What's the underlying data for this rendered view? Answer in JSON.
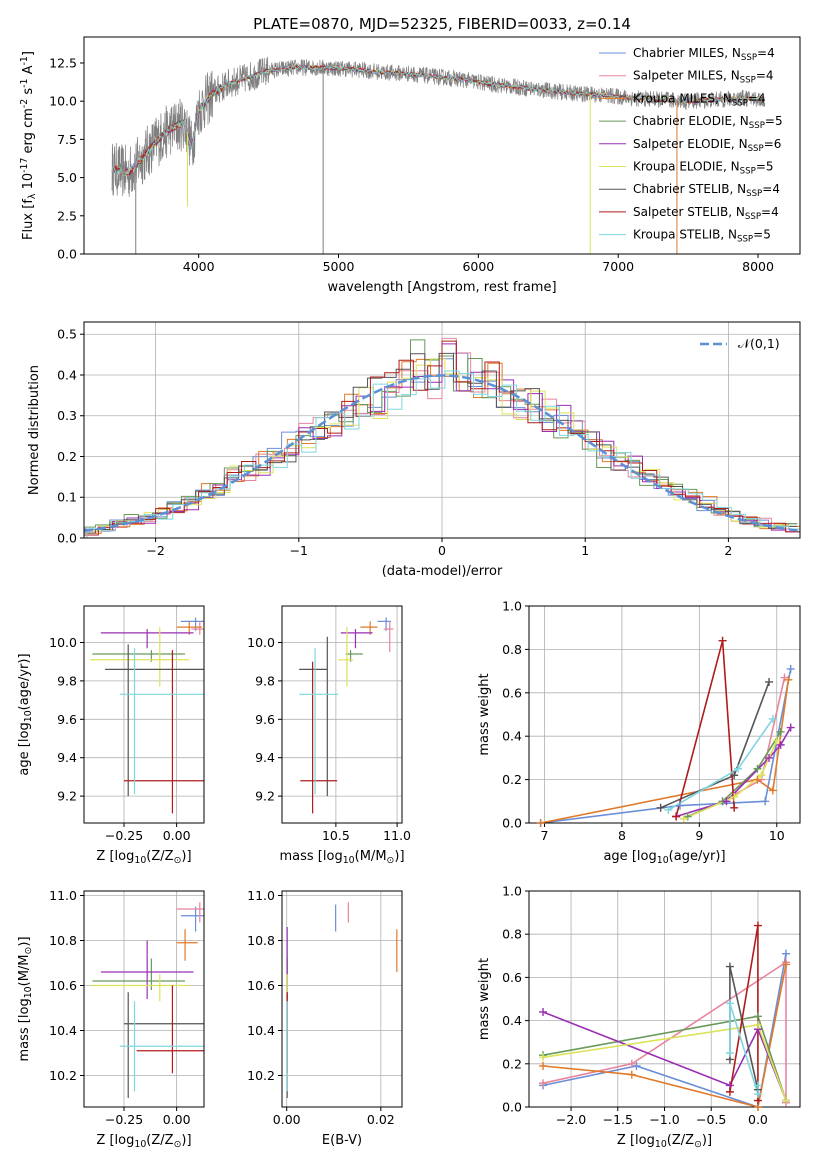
{
  "figure_title": "PLATE=0870, MJD=52325, FIBERID=0033, z=0.14",
  "models": [
    {
      "name": "Chabrier MILES, N$_{SSP}$=4",
      "color": "#6a8fd8"
    },
    {
      "name": "Salpeter MILES, N$_{SSP}$=4",
      "color": "#e8859c"
    },
    {
      "name": "Kroupa MILES, N$_{SSP}$=4",
      "color": "#e07a2a"
    },
    {
      "name": "Chabrier ELODIE, N$_{SSP}$=5",
      "color": "#6a9a5a"
    },
    {
      "name": "Salpeter ELODIE, N$_{SSP}$=6",
      "color": "#9a2fb5"
    },
    {
      "name": "Kroupa ELODIE, N$_{SSP}$=5",
      "color": "#dce35a"
    },
    {
      "name": "Chabrier STELIB, N$_{SSP}$=4",
      "color": "#555555"
    },
    {
      "name": "Salpeter STELIB, N$_{SSP}$=4",
      "color": "#b01c1c"
    },
    {
      "name": "Kroupa STELIB, N$_{SSP}$=5",
      "color": "#7fd6e0"
    }
  ],
  "chart_data": [
    {
      "id": "spectrum",
      "type": "line",
      "xlabel": "wavelength [Angstrom, rest frame]",
      "ylabel": "Flux [f$_\\lambda$ 10$^{-17}$ erg cm$^{-2}$ s$^{-1}$ A$^{-1}$]",
      "xlim": [
        3180,
        8300
      ],
      "ylim": [
        0,
        14.2
      ],
      "xticks": [
        4000,
        5000,
        6000,
        7000,
        8000
      ],
      "yticks": [
        0.0,
        2.5,
        5.0,
        7.5,
        10.0,
        12.5
      ],
      "grid": false,
      "legend": "right",
      "data_color": "#808080",
      "continuum": {
        "x": [
          3380,
          3500,
          3600,
          3700,
          3800,
          3900,
          3950,
          4000,
          4100,
          4200,
          4300,
          4400,
          4500,
          4700,
          4900,
          5100,
          5300,
          5500,
          5700,
          5900,
          6100,
          6300,
          6500,
          6700,
          6900,
          7100,
          7300,
          7500,
          7700,
          7900,
          8050
        ],
        "y": [
          5.6,
          5.3,
          6.3,
          7.4,
          8.2,
          8.6,
          7.0,
          9.4,
          10.5,
          11.1,
          11.4,
          11.7,
          12.0,
          12.2,
          12.2,
          12.1,
          11.9,
          11.8,
          11.6,
          11.4,
          11.1,
          10.9,
          10.7,
          10.5,
          10.4,
          10.2,
          10.1,
          10.0,
          10.1,
          10.2,
          10.1
        ]
      },
      "spikes": [
        {
          "x": 3550,
          "y": 0.0,
          "color": "#808080"
        },
        {
          "x": 3920,
          "y": 3.1,
          "color": "#dce35a"
        },
        {
          "x": 4890,
          "y": 0.0,
          "color": "#808080"
        },
        {
          "x": 6800,
          "y": 0.0,
          "color": "#dce35a"
        },
        {
          "x": 7420,
          "y": 0.0,
          "color": "#e07a2a"
        }
      ]
    },
    {
      "id": "residuals",
      "type": "step",
      "xlabel": "(data-model)/error",
      "ylabel": "Normed distribution",
      "xlim": [
        -2.5,
        2.5
      ],
      "ylim": [
        0,
        0.53
      ],
      "xticks": [
        -2,
        -1,
        0,
        1,
        2
      ],
      "yticks": [
        0.0,
        0.1,
        0.2,
        0.3,
        0.4,
        0.5
      ],
      "grid": true,
      "legend": "top-right",
      "normal_label": "$\\mathcal{N}(0,1)$",
      "normal_color": "#5b8fd6",
      "bins": [
        -2.5,
        -2.4,
        -2.3,
        -2.2,
        -2.1,
        -2.0,
        -1.9,
        -1.8,
        -1.7,
        -1.6,
        -1.5,
        -1.4,
        -1.3,
        -1.2,
        -1.1,
        -1.0,
        -0.9,
        -0.8,
        -0.7,
        -0.6,
        -0.5,
        -0.4,
        -0.3,
        -0.2,
        -0.1,
        0.0,
        0.1,
        0.2,
        0.3,
        0.4,
        0.5,
        0.6,
        0.7,
        0.8,
        0.9,
        1.0,
        1.1,
        1.2,
        1.3,
        1.4,
        1.5,
        1.6,
        1.7,
        1.8,
        1.9,
        2.0,
        2.1,
        2.2,
        2.3,
        2.4,
        2.5
      ],
      "hist_base": [
        0.02,
        0.025,
        0.035,
        0.045,
        0.05,
        0.06,
        0.075,
        0.09,
        0.11,
        0.125,
        0.15,
        0.165,
        0.18,
        0.2,
        0.22,
        0.245,
        0.27,
        0.29,
        0.31,
        0.33,
        0.345,
        0.36,
        0.38,
        0.42,
        0.4,
        0.44,
        0.41,
        0.39,
        0.38,
        0.36,
        0.34,
        0.32,
        0.3,
        0.28,
        0.26,
        0.235,
        0.21,
        0.19,
        0.17,
        0.15,
        0.13,
        0.115,
        0.1,
        0.085,
        0.07,
        0.055,
        0.045,
        0.035,
        0.03,
        0.025
      ]
    },
    {
      "id": "age_vs_Z",
      "type": "scatter",
      "xlabel": "Z [log$_{10}$(Z/Z$_\\odot$)]",
      "ylabel": "age  [log$_{10}$(age/yr)]",
      "xlim": [
        -0.44,
        0.13
      ],
      "ylim": [
        9.06,
        10.19
      ],
      "xticks": [
        -0.25,
        0.0
      ],
      "yticks": [
        9.2,
        9.4,
        9.6,
        9.8,
        10.0
      ],
      "grid": true,
      "points": [
        {
          "m": 0,
          "x": 0.09,
          "y": 10.11,
          "ex": [
            0.07,
            0.04
          ],
          "ey": [
            0.05,
            0.02
          ]
        },
        {
          "m": 1,
          "x": 0.11,
          "y": 10.07,
          "ex": [
            0.04,
            0.02
          ],
          "ey": [
            0.03,
            0.04
          ]
        },
        {
          "m": 2,
          "x": 0.06,
          "y": 10.08,
          "ex": [
            0.06,
            0.06
          ],
          "ey": [
            0.04,
            0.03
          ]
        },
        {
          "m": 3,
          "x": -0.12,
          "y": 9.94,
          "ex": [
            0.28,
            0.16
          ],
          "ey": [
            0.04,
            0.02
          ]
        },
        {
          "m": 4,
          "x": -0.14,
          "y": 10.05,
          "ex": [
            0.22,
            0.22
          ],
          "ey": [
            0.08,
            0.02
          ]
        },
        {
          "m": 5,
          "x": -0.08,
          "y": 9.91,
          "ex": [
            0.33,
            0.14
          ],
          "ey": [
            0.14,
            0.17
          ]
        },
        {
          "m": 6,
          "x": -0.23,
          "y": 9.86,
          "ex": [
            0.11,
            0.38
          ],
          "ey": [
            0.66,
            0.13
          ]
        },
        {
          "m": 7,
          "x": -0.02,
          "y": 9.28,
          "ex": [
            0.23,
            0.16
          ],
          "ey": [
            0.17,
            0.68
          ]
        },
        {
          "m": 8,
          "x": -0.2,
          "y": 9.73,
          "ex": [
            0.07,
            0.34
          ],
          "ey": [
            0.52,
            0.24
          ]
        }
      ]
    },
    {
      "id": "age_vs_mass",
      "type": "scatter",
      "xlabel": "mass [log$_{10}$(M/M$_\\odot$)]",
      "ylabel": "",
      "xlim": [
        10.06,
        11.04
      ],
      "ylim": [
        9.06,
        10.19
      ],
      "xticks": [
        10.5,
        11.0
      ],
      "yticks": [
        9.2,
        9.4,
        9.6,
        9.8,
        10.0
      ],
      "grid": true,
      "points": [
        {
          "m": 0,
          "x": 10.91,
          "y": 10.11,
          "ex": [
            0.07,
            0.04
          ],
          "ey": [
            0.05,
            0.02
          ]
        },
        {
          "m": 1,
          "x": 10.94,
          "y": 10.07,
          "ex": [
            0.05,
            0.03
          ],
          "ey": [
            0.12,
            0.04
          ]
        },
        {
          "m": 2,
          "x": 10.78,
          "y": 10.08,
          "ex": [
            0.08,
            0.06
          ],
          "ey": [
            0.04,
            0.03
          ]
        },
        {
          "m": 3,
          "x": 10.62,
          "y": 9.94,
          "ex": [
            0.04,
            0.1
          ],
          "ey": [
            0.04,
            0.02
          ]
        },
        {
          "m": 4,
          "x": 10.66,
          "y": 10.05,
          "ex": [
            0.12,
            0.14
          ],
          "ey": [
            0.08,
            0.02
          ]
        },
        {
          "m": 5,
          "x": 10.59,
          "y": 9.91,
          "ex": [
            0.07,
            0.05
          ],
          "ey": [
            0.14,
            0.17
          ]
        },
        {
          "m": 6,
          "x": 10.43,
          "y": 9.86,
          "ex": [
            0.23,
            0.0
          ],
          "ey": [
            0.66,
            0.17
          ]
        },
        {
          "m": 7,
          "x": 10.31,
          "y": 9.28,
          "ex": [
            0.1,
            0.2
          ],
          "ey": [
            0.17,
            0.62
          ]
        },
        {
          "m": 8,
          "x": 10.33,
          "y": 9.73,
          "ex": [
            0.13,
            0.19
          ],
          "ey": [
            0.52,
            0.24
          ]
        }
      ]
    },
    {
      "id": "weight_vs_age",
      "type": "line",
      "xlabel": "age  [log$_{10}$(age/yr)]",
      "ylabel": "mass weight",
      "xlim": [
        6.8,
        10.3
      ],
      "ylim": [
        0,
        1.0
      ],
      "xticks": [
        7,
        8,
        9,
        10
      ],
      "yticks": [
        0.0,
        0.2,
        0.4,
        0.6,
        0.8,
        1.0
      ],
      "grid": true,
      "series": [
        {
          "m": 0,
          "x": [
            6.95,
            8.75,
            9.85,
            10.18
          ],
          "y": [
            0.0,
            0.08,
            0.1,
            0.71
          ]
        },
        {
          "m": 1,
          "x": [
            8.8,
            9.3,
            9.8,
            10.1
          ],
          "y": [
            0.02,
            0.1,
            0.2,
            0.67
          ]
        },
        {
          "m": 2,
          "x": [
            6.95,
            9.75,
            9.95,
            10.15
          ],
          "y": [
            0.0,
            0.2,
            0.15,
            0.66
          ]
        },
        {
          "m": 3,
          "x": [
            8.85,
            9.3,
            9.75,
            10.05
          ],
          "y": [
            0.03,
            0.1,
            0.25,
            0.42
          ]
        },
        {
          "m": 4,
          "x": [
            8.7,
            9.35,
            9.9,
            10.05,
            10.18
          ],
          "y": [
            0.03,
            0.1,
            0.3,
            0.36,
            0.44
          ]
        },
        {
          "m": 5,
          "x": [
            8.8,
            9.45,
            9.8,
            10.0
          ],
          "y": [
            0.02,
            0.12,
            0.22,
            0.38
          ]
        },
        {
          "m": 6,
          "x": [
            8.5,
            9.45,
            9.9
          ],
          "y": [
            0.07,
            0.22,
            0.65
          ]
        },
        {
          "m": 7,
          "x": [
            8.7,
            9.3,
            9.45
          ],
          "y": [
            0.03,
            0.84,
            0.07
          ]
        },
        {
          "m": 8,
          "x": [
            8.6,
            9.5,
            9.95
          ],
          "y": [
            0.06,
            0.25,
            0.48
          ]
        }
      ]
    },
    {
      "id": "mass_vs_Z",
      "type": "scatter",
      "xlabel": "Z [log$_{10}$(Z/Z$_\\odot$)]",
      "ylabel": "mass [log$_{10}$(M/M$_\\odot$)]",
      "xlim": [
        -0.44,
        0.13
      ],
      "ylim": [
        10.06,
        11.02
      ],
      "xticks": [
        -0.25,
        0.0
      ],
      "yticks": [
        10.2,
        10.4,
        10.6,
        10.8,
        11.0
      ],
      "grid": true,
      "points": [
        {
          "m": 0,
          "x": 0.09,
          "y": 10.91,
          "ex": [
            0.07,
            0.04
          ],
          "ey": [
            0.07,
            0.04
          ]
        },
        {
          "m": 1,
          "x": 0.11,
          "y": 10.94,
          "ex": [
            0.11,
            0.02
          ],
          "ey": [
            0.06,
            0.03
          ]
        },
        {
          "m": 2,
          "x": 0.04,
          "y": 10.79,
          "ex": [
            0.04,
            0.06
          ],
          "ey": [
            0.08,
            0.06
          ]
        },
        {
          "m": 3,
          "x": -0.12,
          "y": 10.62,
          "ex": [
            0.28,
            0.16
          ],
          "ey": [
            0.04,
            0.1
          ]
        },
        {
          "m": 4,
          "x": -0.14,
          "y": 10.66,
          "ex": [
            0.22,
            0.22
          ],
          "ey": [
            0.12,
            0.14
          ]
        },
        {
          "m": 5,
          "x": -0.08,
          "y": 10.6,
          "ex": [
            0.33,
            0.14
          ],
          "ey": [
            0.07,
            0.05
          ]
        },
        {
          "m": 6,
          "x": -0.23,
          "y": 10.43,
          "ex": [
            0.02,
            0.36
          ],
          "ey": [
            0.33,
            0.14
          ]
        },
        {
          "m": 7,
          "x": -0.02,
          "y": 10.31,
          "ex": [
            0.17,
            0.17
          ],
          "ey": [
            0.1,
            0.29
          ]
        },
        {
          "m": 8,
          "x": -0.2,
          "y": 10.33,
          "ex": [
            0.07,
            0.34
          ],
          "ey": [
            0.2,
            0.2
          ]
        }
      ]
    },
    {
      "id": "mass_vs_ebv",
      "type": "scatter",
      "xlabel": "E(B-V)",
      "ylabel": "",
      "xlim": [
        -0.001,
        0.0245
      ],
      "ylim": [
        10.06,
        11.02
      ],
      "xticks": [
        0.0,
        0.02
      ],
      "yticks": [
        10.2,
        10.4,
        10.6,
        10.8,
        11.0
      ],
      "grid": true,
      "points": [
        {
          "m": 0,
          "x": 0.0104,
          "y": 10.91,
          "ex": [
            0,
            0
          ],
          "ey": [
            0.07,
            0.05
          ]
        },
        {
          "m": 1,
          "x": 0.0131,
          "y": 10.94,
          "ex": [
            0,
            0
          ],
          "ey": [
            0.06,
            0.03
          ]
        },
        {
          "m": 2,
          "x": 0.0234,
          "y": 10.76,
          "ex": [
            0,
            0
          ],
          "ey": [
            0.1,
            0.09
          ]
        },
        {
          "m": 3,
          "x": 0.0001,
          "y": 10.62,
          "ex": [
            0,
            0
          ],
          "ey": [
            0.08,
            0.1
          ]
        },
        {
          "m": 4,
          "x": 0.0001,
          "y": 10.66,
          "ex": [
            0,
            0
          ],
          "ey": [
            0.12,
            0.2
          ]
        },
        {
          "m": 5,
          "x": 0.0001,
          "y": 10.6,
          "ex": [
            0,
            0
          ],
          "ey": [
            0.07,
            0.05
          ]
        },
        {
          "m": 6,
          "x": 0.0001,
          "y": 10.43,
          "ex": [
            0,
            0
          ],
          "ey": [
            0.33,
            0.14
          ]
        },
        {
          "m": 7,
          "x": 0.0001,
          "y": 10.51,
          "ex": [
            0,
            0
          ],
          "ey": [
            0.3,
            0.06
          ]
        },
        {
          "m": 8,
          "x": 0.0001,
          "y": 10.33,
          "ex": [
            0,
            0
          ],
          "ey": [
            0.2,
            0.2
          ]
        }
      ]
    },
    {
      "id": "weight_vs_Z",
      "type": "line",
      "xlabel": "Z [log$_{10}$(Z/Z$_\\odot$)]",
      "ylabel": "mass weight",
      "xlim": [
        -2.45,
        0.45
      ],
      "ylim": [
        0,
        1.0
      ],
      "xticks": [
        -2.0,
        -1.5,
        -1.0,
        -0.5,
        0.0
      ],
      "yticks": [
        0.0,
        0.2,
        0.4,
        0.6,
        0.8,
        1.0
      ],
      "grid": true,
      "series": [
        {
          "m": 0,
          "x": [
            -2.3,
            -1.3,
            0.0,
            0.3
          ],
          "y": [
            0.1,
            0.19,
            0.0,
            0.71
          ]
        },
        {
          "m": 1,
          "x": [
            -2.3,
            -1.35,
            0.3,
            0.3
          ],
          "y": [
            0.11,
            0.2,
            0.67,
            0.02
          ]
        },
        {
          "m": 2,
          "x": [
            -2.3,
            -1.35,
            0.0,
            0.3
          ],
          "y": [
            0.19,
            0.15,
            0.0,
            0.66
          ]
        },
        {
          "m": 3,
          "x": [
            -2.3,
            0.0,
            0.3
          ],
          "y": [
            0.24,
            0.42,
            0.03
          ]
        },
        {
          "m": 4,
          "x": [
            -2.3,
            -0.3,
            0.0,
            0.3
          ],
          "y": [
            0.44,
            0.1,
            0.36,
            0.03
          ]
        },
        {
          "m": 5,
          "x": [
            -2.3,
            0.0,
            0.3
          ],
          "y": [
            0.23,
            0.38,
            0.03
          ]
        },
        {
          "m": 6,
          "x": [
            -0.3,
            -0.3,
            0.0
          ],
          "y": [
            0.22,
            0.65,
            0.08
          ]
        },
        {
          "m": 7,
          "x": [
            -0.3,
            0.0,
            0.0
          ],
          "y": [
            0.07,
            0.84,
            0.03
          ]
        },
        {
          "m": 8,
          "x": [
            -0.3,
            -0.3,
            0.0,
            0.0
          ],
          "y": [
            0.25,
            0.48,
            0.06,
            0.1
          ]
        }
      ]
    }
  ]
}
